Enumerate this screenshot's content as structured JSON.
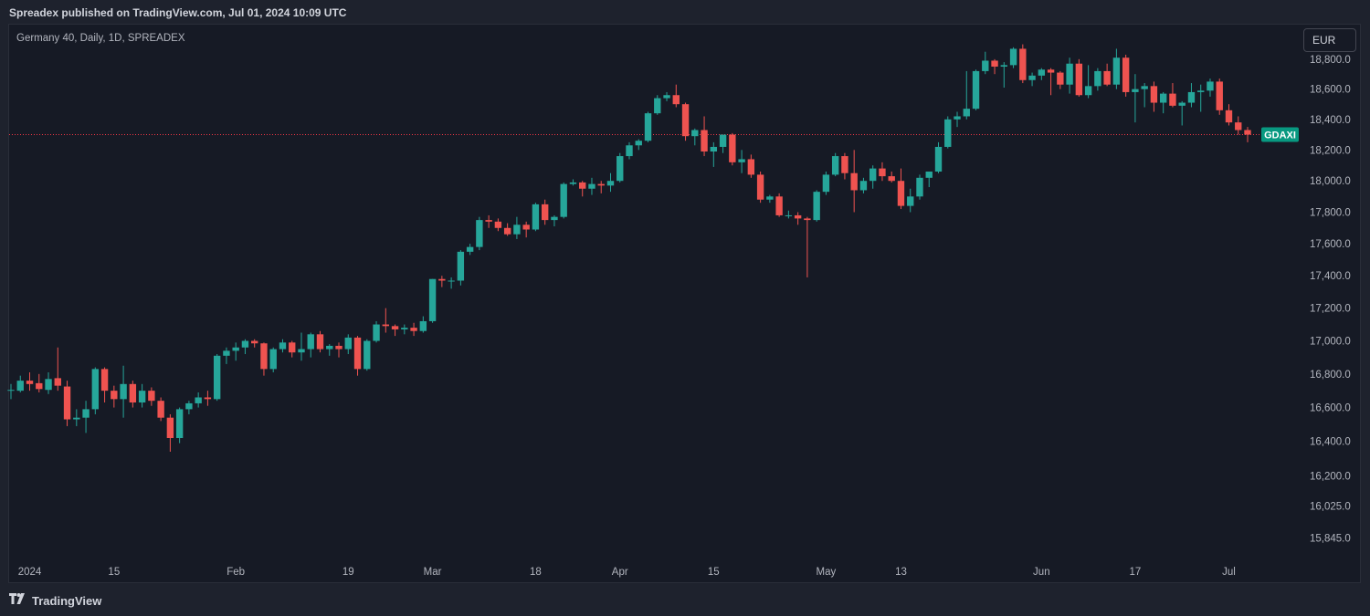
{
  "header": {
    "published": "Spreadex published on TradingView.com, Jul 01, 2024 10:09 UTC"
  },
  "legend": {
    "symbol": "Germany 40, Daily, 1D, SPREADEX"
  },
  "currency": {
    "label": "EUR"
  },
  "footer": {
    "brand": "TradingView"
  },
  "colors": {
    "up": "#26a69a",
    "down": "#ef5350",
    "background": "#161a25",
    "text": "#b2b5be",
    "last_price_line": "#f23645",
    "badge": "#089981"
  },
  "chart_data": {
    "type": "candlestick",
    "title": "Germany 40, Daily, 1D, SPREADEX",
    "y_ticks": [
      "18,800.0",
      "18,600.0",
      "18,400.0",
      "18,200.0",
      "18,000.0",
      "17,800.0",
      "17,600.0",
      "17,400.0",
      "17,200.0",
      "17,000.0",
      "16,800.0",
      "16,600.0",
      "16,400.0",
      "16,200.0",
      "16,025.0",
      "15,845.0"
    ],
    "x_ticks": [
      "2024",
      "15",
      "Feb",
      "19",
      "Mar",
      "18",
      "Apr",
      "15",
      "May",
      "13",
      "Jun",
      "17",
      "Jul"
    ],
    "last_price_label": "GDAXI",
    "last_price": 18300,
    "ylim": [
      15790,
      18990
    ],
    "y_scale": "log",
    "candles": [
      {
        "d": "2023-12-28",
        "o": 16700,
        "h": 16740,
        "l": 16650,
        "c": 16705
      },
      {
        "d": "2023-12-29",
        "o": 16700,
        "h": 16790,
        "l": 16690,
        "c": 16760
      },
      {
        "d": "2024-01-02",
        "o": 16760,
        "h": 16810,
        "l": 16700,
        "c": 16740
      },
      {
        "d": "2024-01-03",
        "o": 16745,
        "h": 16800,
        "l": 16690,
        "c": 16710
      },
      {
        "d": "2024-01-04",
        "o": 16705,
        "h": 16810,
        "l": 16680,
        "c": 16770
      },
      {
        "d": "2024-01-05",
        "o": 16775,
        "h": 16960,
        "l": 16700,
        "c": 16730
      },
      {
        "d": "2024-01-08",
        "o": 16725,
        "h": 16760,
        "l": 16490,
        "c": 16530
      },
      {
        "d": "2024-01-09",
        "o": 16530,
        "h": 16590,
        "l": 16490,
        "c": 16540
      },
      {
        "d": "2024-01-10",
        "o": 16540,
        "h": 16640,
        "l": 16450,
        "c": 16590
      },
      {
        "d": "2024-01-11",
        "o": 16590,
        "h": 16840,
        "l": 16560,
        "c": 16830
      },
      {
        "d": "2024-01-12",
        "o": 16830,
        "h": 16840,
        "l": 16630,
        "c": 16700
      },
      {
        "d": "2024-01-15",
        "o": 16700,
        "h": 16730,
        "l": 16600,
        "c": 16650
      },
      {
        "d": "2024-01-16",
        "o": 16650,
        "h": 16850,
        "l": 16540,
        "c": 16740
      },
      {
        "d": "2024-01-17",
        "o": 16740,
        "h": 16760,
        "l": 16600,
        "c": 16630
      },
      {
        "d": "2024-01-18",
        "o": 16630,
        "h": 16740,
        "l": 16600,
        "c": 16700
      },
      {
        "d": "2024-01-19",
        "o": 16700,
        "h": 16720,
        "l": 16610,
        "c": 16640
      },
      {
        "d": "2024-01-22",
        "o": 16640,
        "h": 16660,
        "l": 16520,
        "c": 16540
      },
      {
        "d": "2024-01-23",
        "o": 16540,
        "h": 16560,
        "l": 16340,
        "c": 16420
      },
      {
        "d": "2024-01-24",
        "o": 16420,
        "h": 16600,
        "l": 16390,
        "c": 16590
      },
      {
        "d": "2024-01-25",
        "o": 16590,
        "h": 16640,
        "l": 16560,
        "c": 16625
      },
      {
        "d": "2024-01-26",
        "o": 16625,
        "h": 16690,
        "l": 16600,
        "c": 16660
      },
      {
        "d": "2024-01-29",
        "o": 16660,
        "h": 16700,
        "l": 16610,
        "c": 16650
      },
      {
        "d": "2024-01-30",
        "o": 16650,
        "h": 16920,
        "l": 16640,
        "c": 16910
      },
      {
        "d": "2024-01-31",
        "o": 16910,
        "h": 16960,
        "l": 16860,
        "c": 16940
      },
      {
        "d": "2024-02-01",
        "o": 16940,
        "h": 16990,
        "l": 16880,
        "c": 16960
      },
      {
        "d": "2024-02-02",
        "o": 16960,
        "h": 17010,
        "l": 16920,
        "c": 17000
      },
      {
        "d": "2024-02-05",
        "o": 17000,
        "h": 17010,
        "l": 16960,
        "c": 16985
      },
      {
        "d": "2024-02-06",
        "o": 16985,
        "h": 16990,
        "l": 16790,
        "c": 16830
      },
      {
        "d": "2024-02-07",
        "o": 16830,
        "h": 16960,
        "l": 16810,
        "c": 16950
      },
      {
        "d": "2024-02-08",
        "o": 16950,
        "h": 17010,
        "l": 16930,
        "c": 16990
      },
      {
        "d": "2024-02-09",
        "o": 16990,
        "h": 17000,
        "l": 16900,
        "c": 16930
      },
      {
        "d": "2024-02-12",
        "o": 16930,
        "h": 17050,
        "l": 16880,
        "c": 16950
      },
      {
        "d": "2024-02-13",
        "o": 16950,
        "h": 17050,
        "l": 16900,
        "c": 17040
      },
      {
        "d": "2024-02-14",
        "o": 17040,
        "h": 17060,
        "l": 16930,
        "c": 16950
      },
      {
        "d": "2024-02-15",
        "o": 16950,
        "h": 16980,
        "l": 16910,
        "c": 16970
      },
      {
        "d": "2024-02-16",
        "o": 16970,
        "h": 16990,
        "l": 16900,
        "c": 16950
      },
      {
        "d": "2024-02-19",
        "o": 16950,
        "h": 17040,
        "l": 16920,
        "c": 17020
      },
      {
        "d": "2024-02-20",
        "o": 17020,
        "h": 17030,
        "l": 16790,
        "c": 16830
      },
      {
        "d": "2024-02-21",
        "o": 16830,
        "h": 17010,
        "l": 16820,
        "c": 17000
      },
      {
        "d": "2024-02-22",
        "o": 17000,
        "h": 17120,
        "l": 16990,
        "c": 17100
      },
      {
        "d": "2024-02-23",
        "o": 17100,
        "h": 17200,
        "l": 17050,
        "c": 17090
      },
      {
        "d": "2024-02-26",
        "o": 17090,
        "h": 17100,
        "l": 17030,
        "c": 17070
      },
      {
        "d": "2024-02-27",
        "o": 17070,
        "h": 17100,
        "l": 17040,
        "c": 17080
      },
      {
        "d": "2024-02-28",
        "o": 17080,
        "h": 17110,
        "l": 17030,
        "c": 17060
      },
      {
        "d": "2024-02-29",
        "o": 17060,
        "h": 17150,
        "l": 17050,
        "c": 17120
      },
      {
        "d": "2024-03-01",
        "o": 17120,
        "h": 17380,
        "l": 17110,
        "c": 17380
      },
      {
        "d": "2024-03-04",
        "o": 17380,
        "h": 17400,
        "l": 17330,
        "c": 17370
      },
      {
        "d": "2024-03-05",
        "o": 17370,
        "h": 17390,
        "l": 17320,
        "c": 17370
      },
      {
        "d": "2024-03-06",
        "o": 17370,
        "h": 17560,
        "l": 17340,
        "c": 17550
      },
      {
        "d": "2024-03-07",
        "o": 17550,
        "h": 17600,
        "l": 17530,
        "c": 17580
      },
      {
        "d": "2024-03-08",
        "o": 17580,
        "h": 17770,
        "l": 17560,
        "c": 17750
      },
      {
        "d": "2024-03-11",
        "o": 17750,
        "h": 17780,
        "l": 17700,
        "c": 17740
      },
      {
        "d": "2024-03-12",
        "o": 17740,
        "h": 17760,
        "l": 17680,
        "c": 17700
      },
      {
        "d": "2024-03-13",
        "o": 17700,
        "h": 17730,
        "l": 17650,
        "c": 17660
      },
      {
        "d": "2024-03-14",
        "o": 17660,
        "h": 17770,
        "l": 17630,
        "c": 17720
      },
      {
        "d": "2024-03-15",
        "o": 17720,
        "h": 17740,
        "l": 17640,
        "c": 17690
      },
      {
        "d": "2024-03-18",
        "o": 17690,
        "h": 17860,
        "l": 17680,
        "c": 17850
      },
      {
        "d": "2024-03-19",
        "o": 17850,
        "h": 17880,
        "l": 17720,
        "c": 17750
      },
      {
        "d": "2024-03-20",
        "o": 17750,
        "h": 17780,
        "l": 17710,
        "c": 17770
      },
      {
        "d": "2024-03-21",
        "o": 17770,
        "h": 17990,
        "l": 17760,
        "c": 17980
      },
      {
        "d": "2024-03-22",
        "o": 17980,
        "h": 18010,
        "l": 17970,
        "c": 17990
      },
      {
        "d": "2024-03-25",
        "o": 17990,
        "h": 18000,
        "l": 17900,
        "c": 17950
      },
      {
        "d": "2024-03-26",
        "o": 17950,
        "h": 18020,
        "l": 17910,
        "c": 17980
      },
      {
        "d": "2024-03-27",
        "o": 17980,
        "h": 18000,
        "l": 17920,
        "c": 17970
      },
      {
        "d": "2024-03-28",
        "o": 17970,
        "h": 18050,
        "l": 17930,
        "c": 18000
      },
      {
        "d": "2024-04-01",
        "o": 18000,
        "h": 18180,
        "l": 17990,
        "c": 18160
      },
      {
        "d": "2024-04-02",
        "o": 18160,
        "h": 18250,
        "l": 18140,
        "c": 18230
      },
      {
        "d": "2024-04-03",
        "o": 18230,
        "h": 18270,
        "l": 18200,
        "c": 18260
      },
      {
        "d": "2024-04-04",
        "o": 18260,
        "h": 18450,
        "l": 18250,
        "c": 18440
      },
      {
        "d": "2024-04-05",
        "o": 18440,
        "h": 18560,
        "l": 18430,
        "c": 18540
      },
      {
        "d": "2024-04-08",
        "o": 18540,
        "h": 18580,
        "l": 18520,
        "c": 18560
      },
      {
        "d": "2024-04-09",
        "o": 18560,
        "h": 18630,
        "l": 18480,
        "c": 18500
      },
      {
        "d": "2024-04-10",
        "o": 18500,
        "h": 18510,
        "l": 18260,
        "c": 18290
      },
      {
        "d": "2024-04-11",
        "o": 18290,
        "h": 18340,
        "l": 18230,
        "c": 18330
      },
      {
        "d": "2024-04-12",
        "o": 18330,
        "h": 18420,
        "l": 18160,
        "c": 18190
      },
      {
        "d": "2024-04-15",
        "o": 18190,
        "h": 18250,
        "l": 18090,
        "c": 18220
      },
      {
        "d": "2024-04-16",
        "o": 18220,
        "h": 18300,
        "l": 18180,
        "c": 18300
      },
      {
        "d": "2024-04-17",
        "o": 18300,
        "h": 18310,
        "l": 18100,
        "c": 18120
      },
      {
        "d": "2024-04-18",
        "o": 18120,
        "h": 18200,
        "l": 18050,
        "c": 18140
      },
      {
        "d": "2024-04-19",
        "o": 18140,
        "h": 18170,
        "l": 18020,
        "c": 18040
      },
      {
        "d": "2024-04-22",
        "o": 18040,
        "h": 18060,
        "l": 17860,
        "c": 17880
      },
      {
        "d": "2024-04-23",
        "o": 17880,
        "h": 17910,
        "l": 17860,
        "c": 17900
      },
      {
        "d": "2024-04-24",
        "o": 17900,
        "h": 17920,
        "l": 17770,
        "c": 17780
      },
      {
        "d": "2024-04-25",
        "o": 17780,
        "h": 17810,
        "l": 17760,
        "c": 17780
      },
      {
        "d": "2024-04-26",
        "o": 17780,
        "h": 17800,
        "l": 17720,
        "c": 17760
      },
      {
        "d": "2024-04-29",
        "o": 17760,
        "h": 17770,
        "l": 17390,
        "c": 17750
      },
      {
        "d": "2024-04-30",
        "o": 17750,
        "h": 17940,
        "l": 17740,
        "c": 17930
      },
      {
        "d": "2024-05-01",
        "o": 17930,
        "h": 18060,
        "l": 17910,
        "c": 18040
      },
      {
        "d": "2024-05-02",
        "o": 18040,
        "h": 18180,
        "l": 18030,
        "c": 18160
      },
      {
        "d": "2024-05-03",
        "o": 18160,
        "h": 18180,
        "l": 18010,
        "c": 18050
      },
      {
        "d": "2024-05-06",
        "o": 18050,
        "h": 18200,
        "l": 17800,
        "c": 17940
      },
      {
        "d": "2024-05-07",
        "o": 17940,
        "h": 18020,
        "l": 17920,
        "c": 18000
      },
      {
        "d": "2024-05-08",
        "o": 18000,
        "h": 18100,
        "l": 17950,
        "c": 18080
      },
      {
        "d": "2024-05-09",
        "o": 18080,
        "h": 18120,
        "l": 18000,
        "c": 18030
      },
      {
        "d": "2024-05-10",
        "o": 18030,
        "h": 18060,
        "l": 17990,
        "c": 18000
      },
      {
        "d": "2024-05-13",
        "o": 18000,
        "h": 18080,
        "l": 17820,
        "c": 17840
      },
      {
        "d": "2024-05-14",
        "o": 17840,
        "h": 17950,
        "l": 17800,
        "c": 17900
      },
      {
        "d": "2024-05-15",
        "o": 17900,
        "h": 18040,
        "l": 17880,
        "c": 18020
      },
      {
        "d": "2024-05-16",
        "o": 18020,
        "h": 18060,
        "l": 17960,
        "c": 18060
      },
      {
        "d": "2024-05-17",
        "o": 18060,
        "h": 18250,
        "l": 18050,
        "c": 18220
      },
      {
        "d": "2024-05-20",
        "o": 18220,
        "h": 18420,
        "l": 18210,
        "c": 18400
      },
      {
        "d": "2024-05-21",
        "o": 18400,
        "h": 18450,
        "l": 18350,
        "c": 18420
      },
      {
        "d": "2024-05-22",
        "o": 18420,
        "h": 18720,
        "l": 18400,
        "c": 18470
      },
      {
        "d": "2024-05-23",
        "o": 18470,
        "h": 18730,
        "l": 18460,
        "c": 18720
      },
      {
        "d": "2024-05-24",
        "o": 18720,
        "h": 18850,
        "l": 18700,
        "c": 18790
      },
      {
        "d": "2024-05-27",
        "o": 18790,
        "h": 18800,
        "l": 18700,
        "c": 18750
      },
      {
        "d": "2024-05-28",
        "o": 18750,
        "h": 18780,
        "l": 18610,
        "c": 18760
      },
      {
        "d": "2024-05-29",
        "o": 18760,
        "h": 18880,
        "l": 18740,
        "c": 18870
      },
      {
        "d": "2024-05-30",
        "o": 18870,
        "h": 18900,
        "l": 18640,
        "c": 18660
      },
      {
        "d": "2024-05-31",
        "o": 18660,
        "h": 18710,
        "l": 18620,
        "c": 18690
      },
      {
        "d": "2024-06-03",
        "o": 18690,
        "h": 18740,
        "l": 18660,
        "c": 18730
      },
      {
        "d": "2024-06-04",
        "o": 18730,
        "h": 18740,
        "l": 18560,
        "c": 18710
      },
      {
        "d": "2024-06-05",
        "o": 18710,
        "h": 18720,
        "l": 18600,
        "c": 18630
      },
      {
        "d": "2024-06-06",
        "o": 18630,
        "h": 18810,
        "l": 18570,
        "c": 18770
      },
      {
        "d": "2024-06-07",
        "o": 18770,
        "h": 18800,
        "l": 18550,
        "c": 18560
      },
      {
        "d": "2024-06-10",
        "o": 18560,
        "h": 18760,
        "l": 18540,
        "c": 18620
      },
      {
        "d": "2024-06-11",
        "o": 18620,
        "h": 18740,
        "l": 18590,
        "c": 18720
      },
      {
        "d": "2024-06-12",
        "o": 18720,
        "h": 18770,
        "l": 18620,
        "c": 18630
      },
      {
        "d": "2024-06-13",
        "o": 18630,
        "h": 18870,
        "l": 18600,
        "c": 18810
      },
      {
        "d": "2024-06-14",
        "o": 18810,
        "h": 18830,
        "l": 18550,
        "c": 18580
      },
      {
        "d": "2024-06-17",
        "o": 18580,
        "h": 18700,
        "l": 18380,
        "c": 18600
      },
      {
        "d": "2024-06-18",
        "o": 18600,
        "h": 18640,
        "l": 18480,
        "c": 18620
      },
      {
        "d": "2024-06-19",
        "o": 18620,
        "h": 18650,
        "l": 18450,
        "c": 18510
      },
      {
        "d": "2024-06-20",
        "o": 18510,
        "h": 18580,
        "l": 18440,
        "c": 18570
      },
      {
        "d": "2024-06-21",
        "o": 18570,
        "h": 18640,
        "l": 18480,
        "c": 18490
      },
      {
        "d": "2024-06-24",
        "o": 18490,
        "h": 18520,
        "l": 18360,
        "c": 18510
      },
      {
        "d": "2024-06-25",
        "o": 18510,
        "h": 18640,
        "l": 18480,
        "c": 18580
      },
      {
        "d": "2024-06-26",
        "o": 18580,
        "h": 18630,
        "l": 18450,
        "c": 18590
      },
      {
        "d": "2024-06-27",
        "o": 18590,
        "h": 18670,
        "l": 18550,
        "c": 18650
      },
      {
        "d": "2024-06-28",
        "o": 18650,
        "h": 18670,
        "l": 18430,
        "c": 18460
      },
      {
        "d": "2024-07-01",
        "o": 18460,
        "h": 18500,
        "l": 18360,
        "c": 18380
      },
      {
        "d": "2024-06-11b",
        "o": 18380,
        "h": 18420,
        "l": 18300,
        "c": 18330
      },
      {
        "d": "2024-06-12b",
        "o": 18330,
        "h": 18350,
        "l": 18250,
        "c": 18300
      }
    ]
  }
}
